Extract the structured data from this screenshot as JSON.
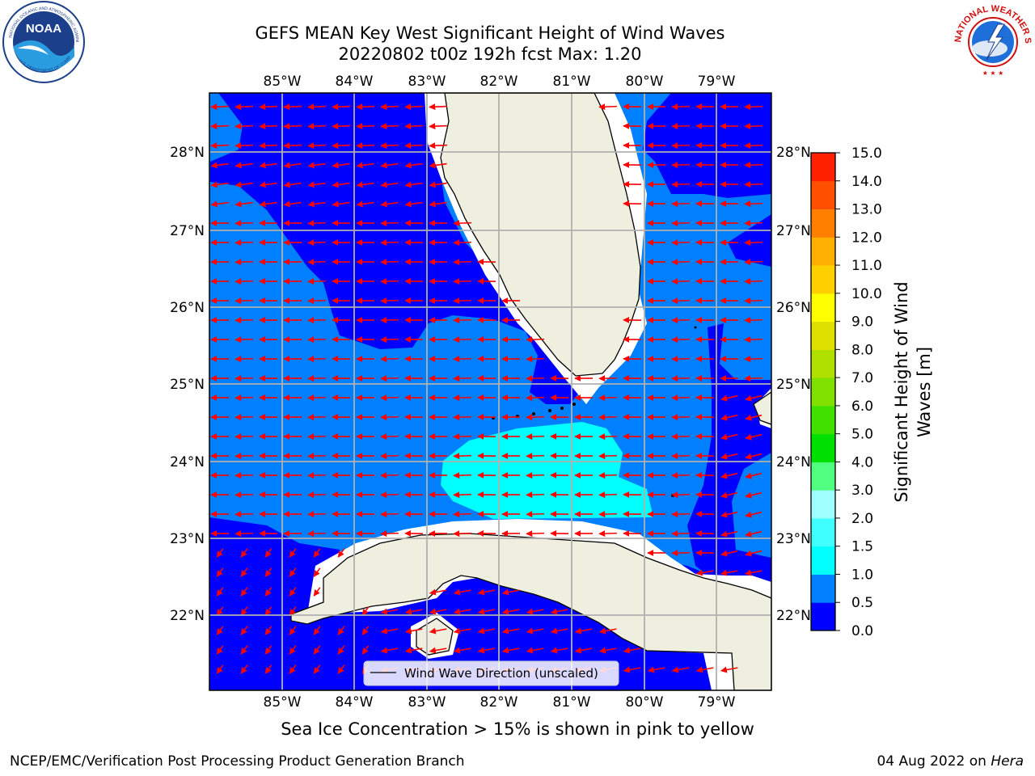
{
  "header": {
    "title_line1": "GEFS MEAN Key West Significant Height of Wind Waves",
    "title_line2": "20220802 t00z 192h fcst   Max: 1.20"
  },
  "logos": {
    "left": "noaa-logo",
    "right": "national-weather-service-logo",
    "left_text": "NOAA",
    "left_ring_text": "NATIONAL OCEANIC AND ATMOSPHERIC ADMINISTRATION",
    "left_bottom_text": "U.S. DEPARTMENT OF COMMERCE",
    "right_ring_text": "NATIONAL WEATHER SERVICE"
  },
  "map": {
    "lon_labels": [
      "85°W",
      "84°W",
      "83°W",
      "82°W",
      "81°W",
      "80°W",
      "79°W"
    ],
    "lat_labels": [
      "28°N",
      "27°N",
      "26°N",
      "25°N",
      "24°N",
      "23°N",
      "22°N"
    ],
    "legend_label": "Wind Wave Direction (unscaled)",
    "arrow_color": "#ff0000",
    "land_color": "#efefe0"
  },
  "colorbar": {
    "title_line1": "Significant Height of Wind",
    "title_line2": "Waves [m]",
    "ticks": [
      "0.0",
      "0.5",
      "1.0",
      "1.5",
      "2.0",
      "3.0",
      "4.0",
      "5.0",
      "6.0",
      "7.0",
      "8.0",
      "9.0",
      "10.0",
      "11.0",
      "12.0",
      "13.0",
      "14.0",
      "15.0"
    ],
    "colors": [
      "#0000ff",
      "#0080ff",
      "#00ffff",
      "#40ffff",
      "#a0ffff",
      "#50ff80",
      "#00e000",
      "#40e000",
      "#80e000",
      "#b0e000",
      "#e0e000",
      "#ffff00",
      "#ffd000",
      "#ffb000",
      "#ff8000",
      "#ff5000",
      "#ff2000"
    ]
  },
  "note": "Sea Ice Concentration > 15% is shown in pink to yellow",
  "footer": {
    "left": "NCEP/EMC/Verification Post Processing Product Generation Branch",
    "right_date": "04 Aug 2022 on ",
    "right_host": "Hera"
  }
}
